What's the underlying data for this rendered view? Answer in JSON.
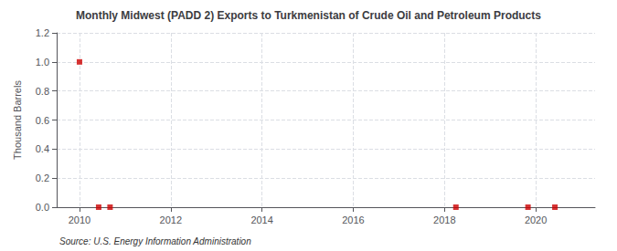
{
  "chart_data": {
    "type": "scatter",
    "title": "Monthly Midwest (PADD 2) Exports to Turkmenistan of Crude Oil and Petroleum Products",
    "y_label": "Thousand Barrels",
    "annotations": [
      "Source: U.S. Energy Information Administration"
    ],
    "x": [
      2010.0,
      2010.42,
      2010.67,
      2018.25,
      2019.83,
      2020.42
    ],
    "values": [
      1.0,
      0.0,
      0.0,
      0.0,
      0.0,
      0.0
    ],
    "color": "#cc0000",
    "marker": "square",
    "xlim": [
      2009.5,
      2021.3
    ],
    "xticks": [
      2010,
      2012,
      2014,
      2016,
      2018,
      2020
    ],
    "ylim": [
      0.0,
      1.2
    ],
    "yticks": [
      {
        "value": 0.0,
        "label": "0.0"
      },
      0.2,
      0.4,
      0.6,
      0.8,
      {
        "value": 1.0,
        "label": "1.0"
      },
      1.2
    ],
    "grid": true
  }
}
